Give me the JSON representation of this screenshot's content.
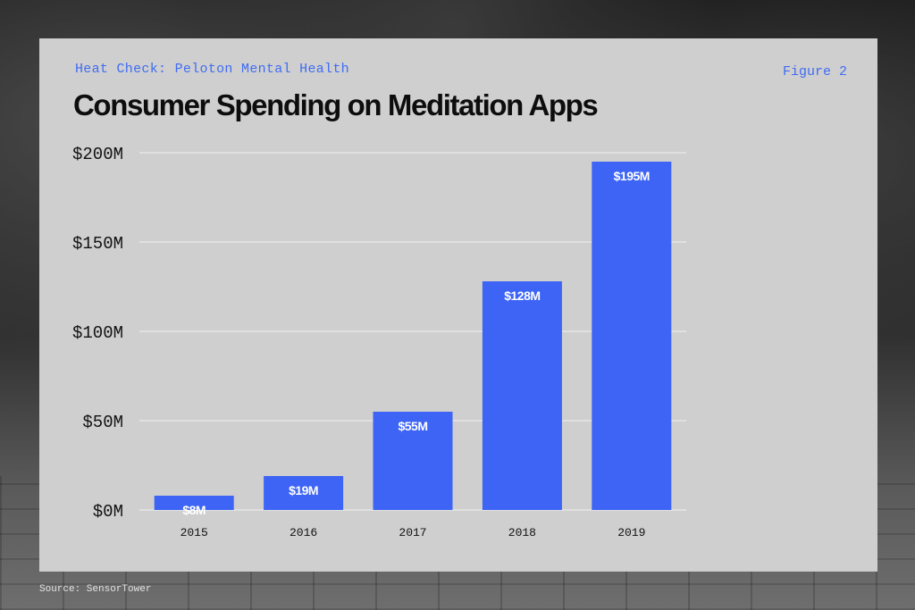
{
  "header": {
    "kicker": "Heat Check: Peloton Mental Health",
    "figure_label": "Figure 2"
  },
  "footer": {
    "source": "Source: SensorTower"
  },
  "colors": {
    "bar": "#3d64f5",
    "card": "#cfcfcf",
    "accent_text": "#3f6cf3"
  },
  "chart_data": {
    "type": "bar",
    "title": "Consumer Spending on Meditation Apps",
    "xlabel": "",
    "ylabel": "",
    "categories": [
      "2015",
      "2016",
      "2017",
      "2018",
      "2019"
    ],
    "values": [
      8,
      19,
      55,
      128,
      195
    ],
    "data_labels": [
      "$8M",
      "$19M",
      "$55M",
      "$128M",
      "$195M"
    ],
    "ylim": [
      0,
      200
    ],
    "yticks": [
      0,
      50,
      100,
      150,
      200
    ],
    "ytick_labels": [
      "$0M",
      "$50M",
      "$100M",
      "$150M",
      "$200M"
    ],
    "grid": true,
    "legend": "none"
  }
}
